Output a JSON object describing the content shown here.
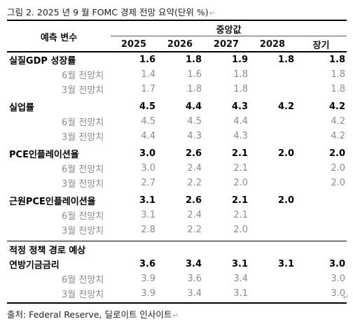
{
  "title": "그림 2. 2025 년 9 월 FOMC 경제 전망 요약(단위 %)",
  "header": {
    "label_col": "예측 변수",
    "group": "중앙값",
    "years": [
      "2025",
      "2026",
      "2027",
      "2028",
      "장기"
    ]
  },
  "groups": [
    {
      "label": "실질GDP 성장률",
      "values": [
        "1.6",
        "1.8",
        "1.9",
        "1.8",
        "1.8"
      ],
      "subs": [
        {
          "label": "6월 전망치",
          "values": [
            "1.4",
            "1.6",
            "1.8",
            "",
            "1.8"
          ]
        },
        {
          "label": "3월 전망치",
          "values": [
            "1.7",
            "1.8",
            "1.8",
            "",
            "1.8"
          ]
        }
      ]
    },
    {
      "label": "실업률",
      "values": [
        "4.5",
        "4.4",
        "4.3",
        "4.2",
        "4.2"
      ],
      "subs": [
        {
          "label": "6월 전망치",
          "values": [
            "4.5",
            "4.5",
            "4.4",
            "",
            "4.2"
          ]
        },
        {
          "label": "3월 전망치",
          "values": [
            "4.4",
            "4.3",
            "4.3",
            "",
            "4.2"
          ]
        }
      ]
    },
    {
      "label": "PCE인플레이션율",
      "values": [
        "3.0",
        "2.6",
        "2.1",
        "2.0",
        "2.0"
      ],
      "subs": [
        {
          "label": "6월 전망치",
          "values": [
            "3.0",
            "2.4",
            "2.1",
            "",
            "2.0"
          ]
        },
        {
          "label": "3월 전망치",
          "values": [
            "2.7",
            "2.2",
            "2.0",
            "",
            "2.0"
          ]
        }
      ]
    },
    {
      "label": "근원PCE인플레이션율",
      "values": [
        "3.1",
        "2.6",
        "2.1",
        "2.0",
        ""
      ],
      "subs": [
        {
          "label": "6월 전망치",
          "values": [
            "3.1",
            "2.4",
            "2.1",
            "",
            ""
          ]
        },
        {
          "label": "3월 전망치",
          "values": [
            "2.8",
            "2.2",
            "2.0",
            "",
            ""
          ]
        }
      ]
    }
  ],
  "section": {
    "label": "적정 정책 경로 예상",
    "group": {
      "label": "연방기금금리",
      "values": [
        "3.6",
        "3.4",
        "3.1",
        "3.1",
        "3.0"
      ],
      "subs": [
        {
          "label": "6월 전망치",
          "values": [
            "3.9",
            "3.6",
            "3.4",
            "",
            "3.0"
          ]
        },
        {
          "label": "3월 전망치",
          "values": [
            "3.9",
            "3.4",
            "3.1",
            "",
            "3.0"
          ]
        }
      ]
    }
  },
  "caption": "출처: Federal Reserve, 딜로이트 인사이트"
}
